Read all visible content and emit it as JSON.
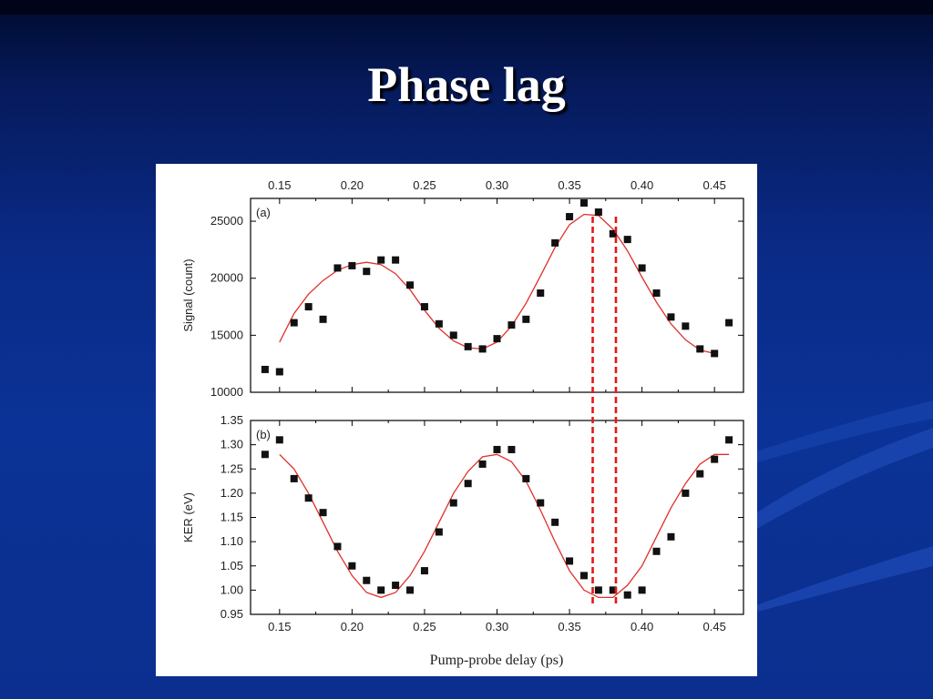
{
  "slide": {
    "title": "Phase lag"
  },
  "chart_data": {
    "type": "scatter",
    "xlabel": "Pump-probe delay (ps)",
    "xlim": [
      0.13,
      0.47
    ],
    "x_ticks": [
      "0.15",
      "0.20",
      "0.25",
      "0.30",
      "0.35",
      "0.40",
      "0.45"
    ],
    "vlines": [
      0.366,
      0.382
    ],
    "panels": [
      {
        "label": "(a)",
        "ylabel": "Signal (count)",
        "ylim": [
          10000,
          27000
        ],
        "y_ticks": [
          "10000",
          "15000",
          "20000",
          "25000"
        ],
        "points": [
          [
            0.14,
            12000
          ],
          [
            0.15,
            11800
          ],
          [
            0.16,
            16100
          ],
          [
            0.17,
            17500
          ],
          [
            0.18,
            16400
          ],
          [
            0.19,
            20900
          ],
          [
            0.2,
            21100
          ],
          [
            0.21,
            20600
          ],
          [
            0.22,
            21600
          ],
          [
            0.23,
            21600
          ],
          [
            0.24,
            19400
          ],
          [
            0.25,
            17500
          ],
          [
            0.26,
            16000
          ],
          [
            0.27,
            15000
          ],
          [
            0.28,
            14000
          ],
          [
            0.29,
            13800
          ],
          [
            0.3,
            14700
          ],
          [
            0.31,
            15900
          ],
          [
            0.32,
            16400
          ],
          [
            0.33,
            18700
          ],
          [
            0.34,
            23100
          ],
          [
            0.35,
            25400
          ],
          [
            0.36,
            26600
          ],
          [
            0.37,
            25800
          ],
          [
            0.38,
            23900
          ],
          [
            0.39,
            23400
          ],
          [
            0.4,
            20900
          ],
          [
            0.41,
            18700
          ],
          [
            0.42,
            16600
          ],
          [
            0.43,
            15800
          ],
          [
            0.44,
            13800
          ],
          [
            0.45,
            13400
          ],
          [
            0.46,
            16100
          ]
        ],
        "fit": [
          [
            0.15,
            14400
          ],
          [
            0.16,
            16900
          ],
          [
            0.17,
            18600
          ],
          [
            0.18,
            19800
          ],
          [
            0.19,
            20700
          ],
          [
            0.2,
            21200
          ],
          [
            0.21,
            21400
          ],
          [
            0.22,
            21200
          ],
          [
            0.23,
            20400
          ],
          [
            0.24,
            19000
          ],
          [
            0.25,
            17200
          ],
          [
            0.26,
            15600
          ],
          [
            0.27,
            14500
          ],
          [
            0.28,
            13900
          ],
          [
            0.29,
            13800
          ],
          [
            0.3,
            14400
          ],
          [
            0.31,
            15800
          ],
          [
            0.32,
            17800
          ],
          [
            0.33,
            20200
          ],
          [
            0.34,
            22700
          ],
          [
            0.35,
            24700
          ],
          [
            0.36,
            25600
          ],
          [
            0.37,
            25500
          ],
          [
            0.38,
            24300
          ],
          [
            0.39,
            22400
          ],
          [
            0.4,
            20100
          ],
          [
            0.41,
            17900
          ],
          [
            0.42,
            16000
          ],
          [
            0.43,
            14600
          ],
          [
            0.44,
            13700
          ],
          [
            0.45,
            13400
          ]
        ]
      },
      {
        "label": "(b)",
        "ylabel": "KER (eV)",
        "ylim": [
          0.95,
          1.35
        ],
        "y_ticks": [
          "0.95",
          "1.00",
          "1.05",
          "1.10",
          "1.15",
          "1.20",
          "1.25",
          "1.30",
          "1.35"
        ],
        "points": [
          [
            0.14,
            1.28
          ],
          [
            0.15,
            1.31
          ],
          [
            0.16,
            1.23
          ],
          [
            0.17,
            1.19
          ],
          [
            0.18,
            1.16
          ],
          [
            0.19,
            1.09
          ],
          [
            0.2,
            1.05
          ],
          [
            0.21,
            1.02
          ],
          [
            0.22,
            1.0
          ],
          [
            0.23,
            1.01
          ],
          [
            0.24,
            1.0
          ],
          [
            0.25,
            1.04
          ],
          [
            0.26,
            1.12
          ],
          [
            0.27,
            1.18
          ],
          [
            0.28,
            1.22
          ],
          [
            0.29,
            1.26
          ],
          [
            0.3,
            1.29
          ],
          [
            0.31,
            1.29
          ],
          [
            0.32,
            1.23
          ],
          [
            0.33,
            1.18
          ],
          [
            0.34,
            1.14
          ],
          [
            0.35,
            1.06
          ],
          [
            0.36,
            1.03
          ],
          [
            0.37,
            1.0
          ],
          [
            0.38,
            1.0
          ],
          [
            0.39,
            0.99
          ],
          [
            0.4,
            1.0
          ],
          [
            0.41,
            1.08
          ],
          [
            0.42,
            1.11
          ],
          [
            0.43,
            1.2
          ],
          [
            0.44,
            1.24
          ],
          [
            0.45,
            1.27
          ],
          [
            0.46,
            1.31
          ]
        ],
        "fit": [
          [
            0.15,
            1.28
          ],
          [
            0.16,
            1.25
          ],
          [
            0.17,
            1.2
          ],
          [
            0.18,
            1.14
          ],
          [
            0.19,
            1.08
          ],
          [
            0.2,
            1.03
          ],
          [
            0.21,
            0.995
          ],
          [
            0.22,
            0.985
          ],
          [
            0.23,
            0.995
          ],
          [
            0.24,
            1.03
          ],
          [
            0.25,
            1.08
          ],
          [
            0.26,
            1.14
          ],
          [
            0.27,
            1.2
          ],
          [
            0.28,
            1.245
          ],
          [
            0.29,
            1.275
          ],
          [
            0.3,
            1.28
          ],
          [
            0.31,
            1.265
          ],
          [
            0.32,
            1.225
          ],
          [
            0.33,
            1.165
          ],
          [
            0.34,
            1.1
          ],
          [
            0.35,
            1.04
          ],
          [
            0.36,
            1.0
          ],
          [
            0.37,
            0.985
          ],
          [
            0.38,
            0.985
          ],
          [
            0.39,
            1.01
          ],
          [
            0.4,
            1.05
          ],
          [
            0.41,
            1.11
          ],
          [
            0.42,
            1.17
          ],
          [
            0.43,
            1.22
          ],
          [
            0.44,
            1.26
          ],
          [
            0.45,
            1.28
          ],
          [
            0.46,
            1.28
          ]
        ]
      }
    ]
  }
}
